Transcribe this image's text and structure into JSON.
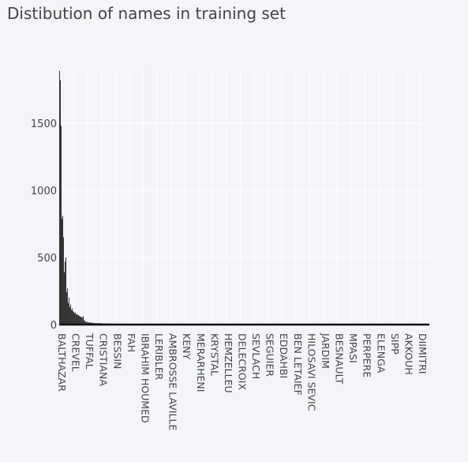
{
  "chart_data": {
    "type": "bar",
    "title": "Distibution of names in training set",
    "xlabel": "",
    "ylabel": "",
    "ylim": [
      0,
      1900
    ],
    "yticks": [
      0,
      500,
      1000,
      1500
    ],
    "grid": true,
    "legend": "none",
    "bar_color": "#333333",
    "x_tick_labels": [
      "BALTHAZAR",
      "CREVEL",
      "TUFFAL",
      "CRISTIANA",
      "BESSIN",
      "FAH",
      "IBRAHIM HOUMED",
      "LERIBLER",
      "AMBROSSE LAVILLE",
      "KENY",
      "MERARHENI",
      "KRYSTAL",
      "HEMZELLEU",
      "DELECROIX",
      "SEVLACH",
      "SEGUIER",
      "EDDAHBI",
      "BEN LETAIEF",
      "HILOSAVI SEVIC",
      "JARDIM",
      "BESNAULT",
      "MPASI",
      "PERPERE",
      "ELENGA",
      "SIPP",
      "AKKOUH",
      "DIIMITRI"
    ],
    "values_head": [
      1890,
      1820,
      1480,
      790,
      810,
      650,
      390,
      470,
      500,
      240,
      270,
      160,
      200,
      130,
      150,
      110,
      120,
      100,
      95,
      85,
      90,
      75,
      80,
      70,
      72,
      65,
      60,
      58,
      55,
      52
    ]
  }
}
